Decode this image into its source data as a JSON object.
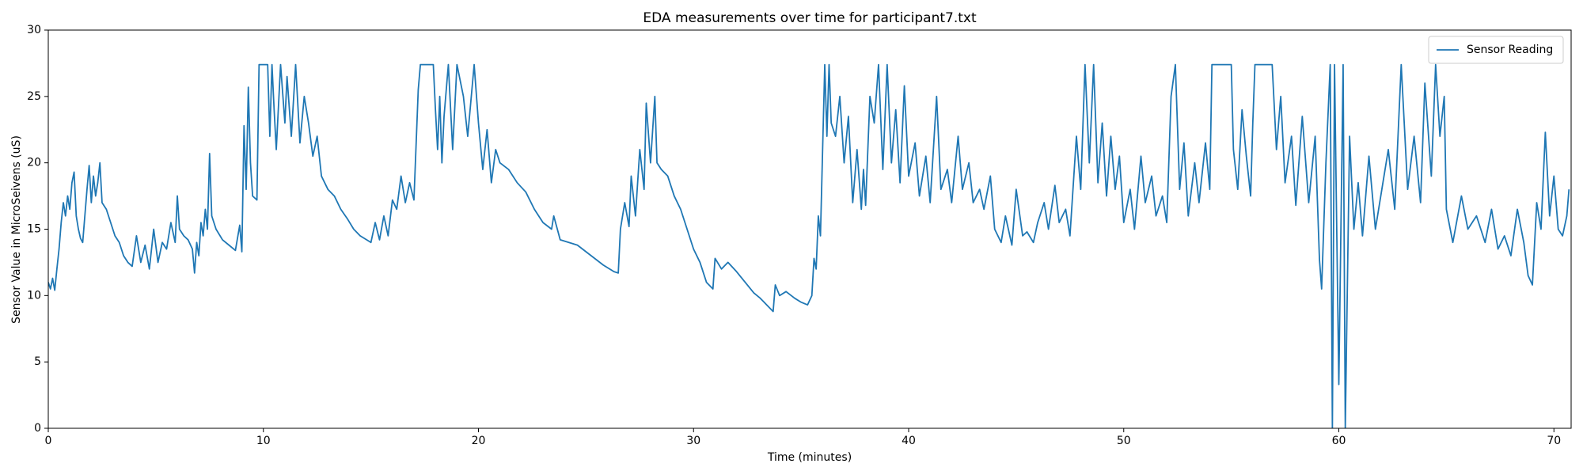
{
  "chart_data": {
    "type": "line",
    "title": "EDA measurements over time for participant7.txt",
    "x_label": "Time (minutes)",
    "y_label": "Sensor Value in MicroSeivens (uS)",
    "xlim": [
      0,
      70.8
    ],
    "ylim": [
      0,
      30
    ],
    "xticks": [
      0,
      10,
      20,
      30,
      40,
      50,
      60,
      70
    ],
    "yticks": [
      0,
      5,
      10,
      15,
      20,
      25,
      30
    ],
    "grid": false,
    "legend": "upper right",
    "x": [
      0,
      0.1,
      0.2,
      0.3,
      0.4,
      0.5,
      0.6,
      0.7,
      0.8,
      0.9,
      1.0,
      1.1,
      1.2,
      1.3,
      1.4,
      1.5,
      1.6,
      1.7,
      1.8,
      1.9,
      2.0,
      2.1,
      2.2,
      2.3,
      2.4,
      2.5,
      2.7,
      2.9,
      3.1,
      3.3,
      3.5,
      3.7,
      3.9,
      4.1,
      4.3,
      4.5,
      4.7,
      4.9,
      5.1,
      5.3,
      5.5,
      5.7,
      5.9,
      6.0,
      6.1,
      6.3,
      6.5,
      6.7,
      6.8,
      6.9,
      7.0,
      7.1,
      7.2,
      7.3,
      7.4,
      7.5,
      7.6,
      7.8,
      8.1,
      8.4,
      8.7,
      8.9,
      9.0,
      9.1,
      9.2,
      9.3,
      9.4,
      9.5,
      9.7,
      9.8,
      10.0,
      10.2,
      10.3,
      10.4,
      10.5,
      10.6,
      10.8,
      11.0,
      11.1,
      11.3,
      11.5,
      11.7,
      11.9,
      12.1,
      12.3,
      12.5,
      12.7,
      13.0,
      13.3,
      13.6,
      13.9,
      14.2,
      14.5,
      14.8,
      15.0,
      15.2,
      15.4,
      15.6,
      15.8,
      16.0,
      16.2,
      16.4,
      16.6,
      16.8,
      17.0,
      17.2,
      17.3,
      17.6,
      17.9,
      18.0,
      18.1,
      18.2,
      18.3,
      18.4,
      18.6,
      18.8,
      19.0,
      19.3,
      19.5,
      19.8,
      20.0,
      20.2,
      20.4,
      20.6,
      20.8,
      21.0,
      21.4,
      21.8,
      22.2,
      22.6,
      23.0,
      23.4,
      23.5,
      23.8,
      24.2,
      24.6,
      25.0,
      25.4,
      25.8,
      26.0,
      26.3,
      26.5,
      26.6,
      26.8,
      27.0,
      27.1,
      27.3,
      27.5,
      27.7,
      27.8,
      28.0,
      28.2,
      28.3,
      28.5,
      28.8,
      29.1,
      29.4,
      29.7,
      30.0,
      30.3,
      30.6,
      30.9,
      31.0,
      31.3,
      31.6,
      32.0,
      32.4,
      32.8,
      33.1,
      33.4,
      33.7,
      33.8,
      34.0,
      34.3,
      34.7,
      35.0,
      35.3,
      35.5,
      35.6,
      35.7,
      35.8,
      35.9,
      36.0,
      36.1,
      36.2,
      36.3,
      36.4,
      36.6,
      36.8,
      37.0,
      37.2,
      37.4,
      37.6,
      37.8,
      37.9,
      38.0,
      38.2,
      38.4,
      38.6,
      38.8,
      39.0,
      39.2,
      39.4,
      39.6,
      39.8,
      40.0,
      40.3,
      40.5,
      40.8,
      41.0,
      41.3,
      41.5,
      41.8,
      42.0,
      42.3,
      42.5,
      42.8,
      43.0,
      43.3,
      43.5,
      43.8,
      44.0,
      44.3,
      44.5,
      44.8,
      45.0,
      45.3,
      45.5,
      45.8,
      46.0,
      46.3,
      46.5,
      46.8,
      47.0,
      47.3,
      47.5,
      47.8,
      48.0,
      48.2,
      48.4,
      48.6,
      48.8,
      49.0,
      49.2,
      49.4,
      49.6,
      49.8,
      50.0,
      50.3,
      50.5,
      50.8,
      51.0,
      51.3,
      51.5,
      51.8,
      52.0,
      52.2,
      52.4,
      52.6,
      52.8,
      53.0,
      53.3,
      53.5,
      53.8,
      54.0,
      54.1,
      54.6,
      55.0,
      55.1,
      55.3,
      55.5,
      55.7,
      55.9,
      56.0,
      56.1,
      56.5,
      56.9,
      57.1,
      57.3,
      57.5,
      57.8,
      58.0,
      58.3,
      58.6,
      58.9,
      59.1,
      59.2,
      59.4,
      59.6,
      59.7,
      59.8,
      60.0,
      60.2,
      60.3,
      60.5,
      60.7,
      60.9,
      61.1,
      61.4,
      61.7,
      62.0,
      62.3,
      62.6,
      62.9,
      63.2,
      63.5,
      63.8,
      64.0,
      64.3,
      64.5,
      64.7,
      64.9,
      65.0,
      65.3,
      65.7,
      66.0,
      66.4,
      66.8,
      67.1,
      67.4,
      67.7,
      68.0,
      68.3,
      68.6,
      68.8,
      69.0,
      69.2,
      69.4,
      69.6,
      69.8,
      70.0,
      70.2,
      70.4,
      70.6,
      70.7
    ],
    "series": [
      {
        "name": "Sensor Reading",
        "color": "#1f77b4",
        "values": [
          11,
          10.5,
          11.3,
          10.4,
          12,
          13.5,
          15.5,
          17,
          16,
          17.5,
          16.5,
          18.5,
          19.3,
          16,
          15,
          14.3,
          14,
          16,
          18,
          19.8,
          17,
          19,
          17.5,
          18.5,
          20,
          17,
          16.5,
          15.5,
          14.5,
          14,
          13,
          12.5,
          12.2,
          14.5,
          12.5,
          13.8,
          12,
          15,
          12.5,
          14,
          13.5,
          15.5,
          14,
          17.5,
          15,
          14.5,
          14.2,
          13.5,
          11.7,
          14,
          13,
          15.5,
          14.5,
          16.5,
          15,
          20.7,
          16,
          15,
          14.2,
          13.8,
          13.4,
          15.3,
          13.3,
          22.8,
          18,
          25.7,
          20,
          17.5,
          17.2,
          27.4,
          27.4,
          27.4,
          22,
          27.4,
          24,
          21,
          27.4,
          23,
          26.5,
          22,
          27.4,
          21.5,
          25,
          23,
          20.5,
          22,
          19,
          18,
          17.5,
          16.5,
          15.8,
          15,
          14.5,
          14.2,
          14.0,
          15.5,
          14.2,
          16,
          14.5,
          17.2,
          16.5,
          19,
          17,
          18.5,
          17.2,
          25.5,
          27.4,
          27.4,
          27.4,
          24,
          21,
          25,
          20,
          23.5,
          27.4,
          21,
          27.4,
          25,
          22,
          27.4,
          23,
          19.5,
          22.5,
          18.5,
          21,
          20,
          19.5,
          18.5,
          17.8,
          16.5,
          15.5,
          15,
          16,
          14.2,
          14,
          13.8,
          13.3,
          12.8,
          12.3,
          12.1,
          11.8,
          11.7,
          15,
          17,
          15.2,
          19,
          16,
          21,
          18,
          24.5,
          20,
          25,
          20,
          19.5,
          19,
          17.5,
          16.5,
          15,
          13.5,
          12.5,
          11,
          10.5,
          12.8,
          12,
          12.5,
          11.8,
          11,
          10.2,
          9.8,
          9.3,
          8.8,
          10.8,
          10,
          10.3,
          9.8,
          9.5,
          9.3,
          10,
          12.8,
          12,
          16,
          14.5,
          21,
          27.4,
          22,
          27.4,
          23,
          22,
          25,
          20,
          23.5,
          17,
          21,
          16.5,
          19.5,
          16.8,
          25,
          23,
          27.4,
          19.5,
          27.4,
          20,
          24,
          18.5,
          25.8,
          19,
          21.5,
          17.5,
          20.5,
          17,
          25,
          18,
          19.5,
          17,
          22,
          18,
          20,
          17,
          18,
          16.5,
          19,
          15,
          14,
          16,
          13.8,
          18,
          14.5,
          14.8,
          14,
          15.5,
          17,
          15,
          18.3,
          15.5,
          16.5,
          14.5,
          22,
          18,
          27.4,
          20,
          27.4,
          18.5,
          23,
          17.5,
          22,
          18,
          20.5,
          15.5,
          18,
          15,
          20.5,
          17,
          19,
          16,
          17.5,
          15.5,
          25,
          27.4,
          18,
          21.5,
          16,
          20,
          17,
          21.5,
          18,
          27.4,
          27.4,
          27.4,
          21,
          18,
          24,
          20.5,
          17.5,
          23,
          27.4,
          27.4,
          27.4,
          21,
          25,
          18.5,
          22,
          16.8,
          23.5,
          17,
          22,
          12.7,
          10.5,
          20,
          27.4,
          0,
          27.4,
          3.3,
          27.4,
          0,
          22,
          15,
          18.5,
          14.5,
          20.5,
          15,
          18,
          21,
          16.5,
          27.4,
          18,
          22,
          17,
          26,
          19,
          27.4,
          22,
          25,
          16.5,
          14,
          17.5,
          15,
          16,
          14,
          16.5,
          13.5,
          14.5,
          13,
          16.5,
          14,
          11.5,
          10.8,
          17,
          15,
          22.3,
          16,
          19,
          15,
          14.5,
          16,
          18
        ]
      }
    ]
  }
}
